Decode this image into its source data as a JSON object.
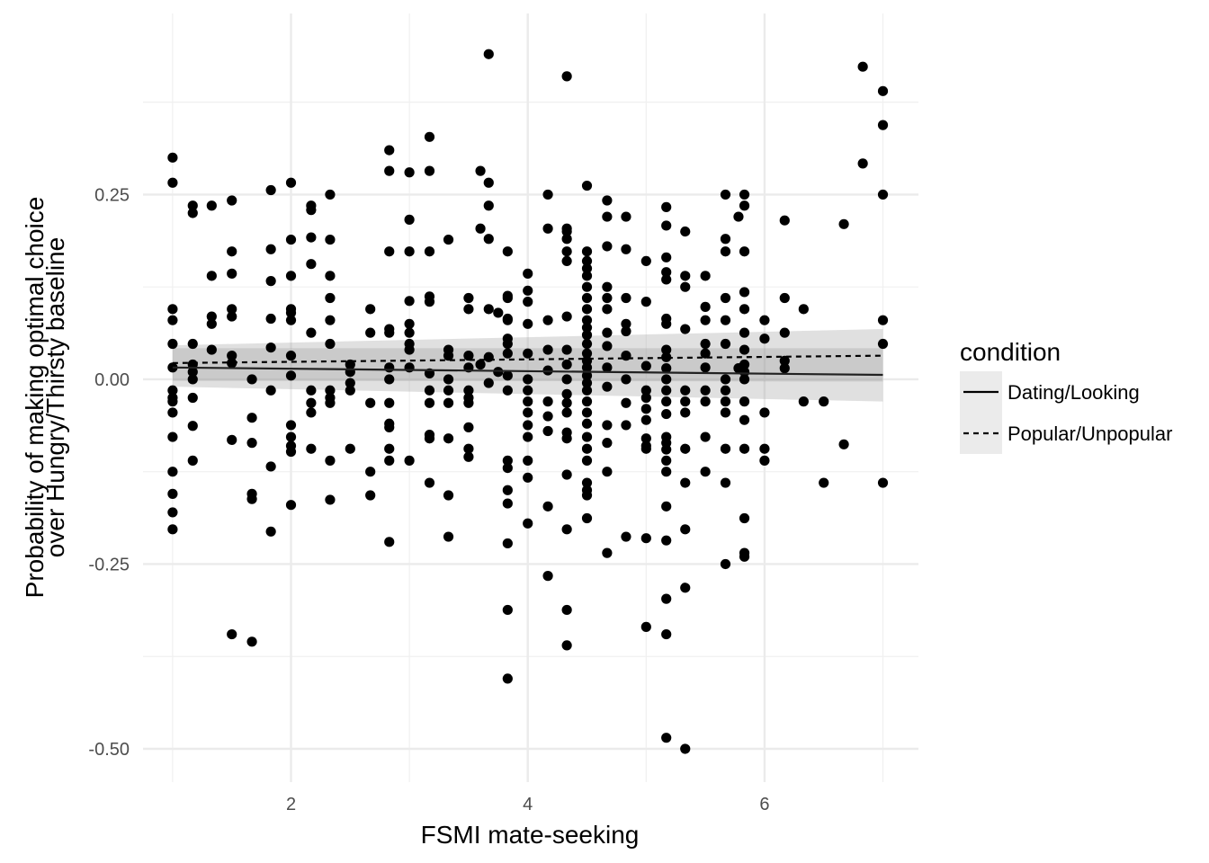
{
  "chart_data": {
    "type": "scatter",
    "xlabel": "FSMI mate-seeking",
    "ylabel_lines": [
      "Probability of making optimal choice",
      "over Hungry/Thirsty baseline"
    ],
    "xlim": [
      0.75,
      7.3
    ],
    "ylim": [
      -0.545,
      0.495
    ],
    "x_ticks": [
      2,
      4,
      6
    ],
    "x_tick_labels": [
      "2",
      "4",
      "6"
    ],
    "y_ticks": [
      -0.5,
      -0.25,
      0.0,
      0.25
    ],
    "y_tick_labels": [
      "-0.50",
      "-0.25",
      "0.00",
      "0.25"
    ],
    "grid": true,
    "legend": {
      "title": "condition",
      "position": "right",
      "entries": [
        {
          "label": "Dating/Looking",
          "linetype": "solid"
        },
        {
          "label": "Popular/Unpopular",
          "linetype": "dashed"
        }
      ]
    },
    "series": [
      {
        "name": "Dating/Looking",
        "type": "line",
        "linetype": "solid",
        "x": [
          1.0,
          7.0
        ],
        "y": [
          0.016,
          0.006
        ],
        "ci_lower": [
          -0.01,
          -0.03
        ],
        "ci_upper": [
          0.042,
          0.042
        ]
      },
      {
        "name": "Popular/Unpopular",
        "type": "line",
        "linetype": "dashed",
        "x": [
          1.0,
          7.0
        ],
        "y": [
          0.022,
          0.032
        ],
        "ci_lower": [
          -0.002,
          -0.003
        ],
        "ci_upper": [
          0.046,
          0.068
        ]
      }
    ],
    "points": [
      [
        1.0,
        0.3
      ],
      [
        1.0,
        0.266
      ],
      [
        1.0,
        0.095
      ],
      [
        1.0,
        0.08
      ],
      [
        1.0,
        0.048
      ],
      [
        1.0,
        0.016
      ],
      [
        1.0,
        -0.015
      ],
      [
        1.0,
        -0.025
      ],
      [
        1.0,
        -0.03
      ],
      [
        1.0,
        -0.045
      ],
      [
        1.0,
        -0.078
      ],
      [
        1.0,
        -0.125
      ],
      [
        1.0,
        -0.155
      ],
      [
        1.0,
        -0.18
      ],
      [
        1.0,
        -0.203
      ],
      [
        1.17,
        0.235
      ],
      [
        1.17,
        0.225
      ],
      [
        1.17,
        0.048
      ],
      [
        1.17,
        0.02
      ],
      [
        1.17,
        0.01
      ],
      [
        1.17,
        0.0
      ],
      [
        1.17,
        -0.025
      ],
      [
        1.17,
        -0.063
      ],
      [
        1.17,
        -0.11
      ],
      [
        1.33,
        0.235
      ],
      [
        1.33,
        0.14
      ],
      [
        1.33,
        0.085
      ],
      [
        1.33,
        0.075
      ],
      [
        1.33,
        0.04
      ],
      [
        1.5,
        0.242
      ],
      [
        1.5,
        0.173
      ],
      [
        1.5,
        0.143
      ],
      [
        1.5,
        0.095
      ],
      [
        1.5,
        0.085
      ],
      [
        1.5,
        0.032
      ],
      [
        1.5,
        0.022
      ],
      [
        1.5,
        -0.082
      ],
      [
        1.5,
        -0.345
      ],
      [
        1.67,
        0.0
      ],
      [
        1.67,
        -0.052
      ],
      [
        1.67,
        -0.086
      ],
      [
        1.67,
        -0.155
      ],
      [
        1.67,
        -0.162
      ],
      [
        1.67,
        -0.355
      ],
      [
        1.83,
        0.256
      ],
      [
        1.83,
        0.176
      ],
      [
        1.83,
        0.133
      ],
      [
        1.83,
        0.082
      ],
      [
        1.83,
        0.043
      ],
      [
        1.83,
        -0.015
      ],
      [
        1.83,
        -0.118
      ],
      [
        1.83,
        -0.206
      ],
      [
        2.0,
        0.266
      ],
      [
        2.0,
        0.189
      ],
      [
        2.0,
        0.14
      ],
      [
        2.0,
        0.095
      ],
      [
        2.0,
        0.09
      ],
      [
        2.0,
        0.08
      ],
      [
        2.0,
        0.032
      ],
      [
        2.0,
        0.005
      ],
      [
        2.0,
        -0.062
      ],
      [
        2.0,
        -0.078
      ],
      [
        2.0,
        -0.09
      ],
      [
        2.0,
        -0.098
      ],
      [
        2.0,
        -0.17
      ],
      [
        2.33,
        0.25
      ],
      [
        2.33,
        0.189
      ],
      [
        2.33,
        0.14
      ],
      [
        2.33,
        0.11
      ],
      [
        2.33,
        0.08
      ],
      [
        2.33,
        0.048
      ],
      [
        2.33,
        -0.015
      ],
      [
        2.33,
        -0.025
      ],
      [
        2.33,
        -0.032
      ],
      [
        2.33,
        -0.11
      ],
      [
        2.33,
        -0.163
      ],
      [
        2.17,
        0.235
      ],
      [
        2.17,
        0.229
      ],
      [
        2.17,
        0.192
      ],
      [
        2.17,
        0.156
      ],
      [
        2.17,
        0.063
      ],
      [
        2.17,
        -0.015
      ],
      [
        2.17,
        -0.032
      ],
      [
        2.17,
        -0.045
      ],
      [
        2.17,
        -0.094
      ],
      [
        2.5,
        0.02
      ],
      [
        2.5,
        0.01
      ],
      [
        2.5,
        -0.005
      ],
      [
        2.5,
        -0.015
      ],
      [
        2.5,
        -0.094
      ],
      [
        2.67,
        0.095
      ],
      [
        2.67,
        0.063
      ],
      [
        2.67,
        -0.032
      ],
      [
        2.67,
        -0.125
      ],
      [
        2.67,
        -0.157
      ],
      [
        2.83,
        0.31
      ],
      [
        2.83,
        0.282
      ],
      [
        2.83,
        0.173
      ],
      [
        2.83,
        0.068
      ],
      [
        2.83,
        0.063
      ],
      [
        2.83,
        0.016
      ],
      [
        2.83,
        0.0
      ],
      [
        2.83,
        -0.032
      ],
      [
        2.83,
        -0.06
      ],
      [
        2.83,
        -0.065
      ],
      [
        2.83,
        -0.094
      ],
      [
        2.83,
        -0.11
      ],
      [
        2.83,
        -0.22
      ],
      [
        3.0,
        0.28
      ],
      [
        3.0,
        0.216
      ],
      [
        3.0,
        0.173
      ],
      [
        3.0,
        0.106
      ],
      [
        3.0,
        0.075
      ],
      [
        3.0,
        0.063
      ],
      [
        3.0,
        0.048
      ],
      [
        3.0,
        0.04
      ],
      [
        3.0,
        0.016
      ],
      [
        3.0,
        -0.11
      ],
      [
        3.17,
        0.328
      ],
      [
        3.17,
        0.282
      ],
      [
        3.17,
        0.173
      ],
      [
        3.17,
        0.112
      ],
      [
        3.17,
        0.105
      ],
      [
        3.17,
        0.008
      ],
      [
        3.17,
        -0.015
      ],
      [
        3.17,
        -0.032
      ],
      [
        3.17,
        -0.075
      ],
      [
        3.17,
        -0.08
      ],
      [
        3.17,
        -0.14
      ],
      [
        3.33,
        0.189
      ],
      [
        3.33,
        0.04
      ],
      [
        3.33,
        0.032
      ],
      [
        3.33,
        0.0
      ],
      [
        3.33,
        -0.015
      ],
      [
        3.33,
        -0.032
      ],
      [
        3.33,
        -0.08
      ],
      [
        3.33,
        -0.157
      ],
      [
        3.33,
        -0.213
      ],
      [
        3.5,
        0.11
      ],
      [
        3.5,
        0.095
      ],
      [
        3.5,
        0.032
      ],
      [
        3.5,
        0.016
      ],
      [
        3.5,
        -0.015
      ],
      [
        3.5,
        -0.025
      ],
      [
        3.5,
        -0.032
      ],
      [
        3.5,
        -0.065
      ],
      [
        3.5,
        -0.094
      ],
      [
        3.5,
        -0.105
      ],
      [
        3.6,
        0.282
      ],
      [
        3.6,
        0.204
      ],
      [
        3.6,
        0.02
      ],
      [
        3.67,
        0.44
      ],
      [
        3.67,
        0.266
      ],
      [
        3.67,
        0.235
      ],
      [
        3.67,
        0.19
      ],
      [
        3.67,
        0.095
      ],
      [
        3.67,
        0.03
      ],
      [
        3.67,
        -0.005
      ],
      [
        3.75,
        0.09
      ],
      [
        3.75,
        0.01
      ],
      [
        3.83,
        0.173
      ],
      [
        3.83,
        0.113
      ],
      [
        3.83,
        0.11
      ],
      [
        3.83,
        0.082
      ],
      [
        3.83,
        0.08
      ],
      [
        3.83,
        0.055
      ],
      [
        3.83,
        0.048
      ],
      [
        3.83,
        0.035
      ],
      [
        3.83,
        0.005
      ],
      [
        3.83,
        -0.015
      ],
      [
        3.83,
        -0.11
      ],
      [
        3.83,
        -0.12
      ],
      [
        3.83,
        -0.15
      ],
      [
        3.83,
        -0.168
      ],
      [
        3.83,
        -0.222
      ],
      [
        3.83,
        -0.312
      ],
      [
        3.83,
        -0.405
      ],
      [
        4.0,
        0.143
      ],
      [
        4.0,
        0.12
      ],
      [
        4.0,
        0.105
      ],
      [
        4.0,
        0.075
      ],
      [
        4.0,
        0.035
      ],
      [
        4.0,
        0.0
      ],
      [
        4.0,
        -0.015
      ],
      [
        4.0,
        -0.03
      ],
      [
        4.0,
        -0.045
      ],
      [
        4.0,
        -0.062
      ],
      [
        4.0,
        -0.078
      ],
      [
        4.0,
        -0.11
      ],
      [
        4.0,
        -0.133
      ],
      [
        4.0,
        -0.195
      ],
      [
        4.33,
        0.41
      ],
      [
        4.33,
        0.204
      ],
      [
        4.33,
        0.2
      ],
      [
        4.33,
        0.19
      ],
      [
        4.33,
        0.173
      ],
      [
        4.33,
        0.16
      ],
      [
        4.33,
        0.085
      ],
      [
        4.33,
        0.04
      ],
      [
        4.33,
        0.02
      ],
      [
        4.33,
        0.0
      ],
      [
        4.33,
        -0.02
      ],
      [
        4.33,
        -0.032
      ],
      [
        4.33,
        -0.045
      ],
      [
        4.33,
        -0.072
      ],
      [
        4.33,
        -0.08
      ],
      [
        4.33,
        -0.129
      ],
      [
        4.33,
        -0.203
      ],
      [
        4.33,
        -0.312
      ],
      [
        4.33,
        -0.36
      ],
      [
        4.17,
        0.25
      ],
      [
        4.17,
        0.204
      ],
      [
        4.17,
        0.08
      ],
      [
        4.17,
        0.04
      ],
      [
        4.17,
        0.012
      ],
      [
        4.17,
        -0.03
      ],
      [
        4.17,
        -0.05
      ],
      [
        4.17,
        -0.07
      ],
      [
        4.17,
        -0.172
      ],
      [
        4.17,
        -0.266
      ],
      [
        4.5,
        0.262
      ],
      [
        4.5,
        0.173
      ],
      [
        4.5,
        0.16
      ],
      [
        4.5,
        0.15
      ],
      [
        4.5,
        0.14
      ],
      [
        4.5,
        0.125
      ],
      [
        4.5,
        0.11
      ],
      [
        4.5,
        0.095
      ],
      [
        4.5,
        0.08
      ],
      [
        4.5,
        0.07
      ],
      [
        4.5,
        0.06
      ],
      [
        4.5,
        0.048
      ],
      [
        4.5,
        0.035
      ],
      [
        4.5,
        0.025
      ],
      [
        4.5,
        0.016
      ],
      [
        4.5,
        0.005
      ],
      [
        4.5,
        -0.005
      ],
      [
        4.5,
        -0.015
      ],
      [
        4.5,
        -0.03
      ],
      [
        4.5,
        -0.045
      ],
      [
        4.5,
        -0.06
      ],
      [
        4.5,
        -0.078
      ],
      [
        4.5,
        -0.094
      ],
      [
        4.5,
        -0.11
      ],
      [
        4.5,
        -0.14
      ],
      [
        4.5,
        -0.15
      ],
      [
        4.5,
        -0.157
      ],
      [
        4.5,
        -0.188
      ],
      [
        4.67,
        0.242
      ],
      [
        4.67,
        0.22
      ],
      [
        4.67,
        0.18
      ],
      [
        4.67,
        0.125
      ],
      [
        4.67,
        0.11
      ],
      [
        4.67,
        0.095
      ],
      [
        4.67,
        0.063
      ],
      [
        4.67,
        0.045
      ],
      [
        4.67,
        0.016
      ],
      [
        4.67,
        -0.01
      ],
      [
        4.67,
        -0.062
      ],
      [
        4.67,
        -0.086
      ],
      [
        4.67,
        -0.125
      ],
      [
        4.67,
        -0.235
      ],
      [
        4.83,
        0.22
      ],
      [
        4.83,
        0.176
      ],
      [
        4.83,
        0.11
      ],
      [
        4.83,
        0.075
      ],
      [
        4.83,
        0.065
      ],
      [
        4.83,
        0.032
      ],
      [
        4.83,
        0.0
      ],
      [
        4.83,
        -0.032
      ],
      [
        4.83,
        -0.062
      ],
      [
        4.83,
        -0.213
      ],
      [
        5.0,
        0.16
      ],
      [
        5.0,
        0.105
      ],
      [
        5.0,
        0.018
      ],
      [
        5.0,
        -0.015
      ],
      [
        5.0,
        -0.025
      ],
      [
        5.0,
        -0.04
      ],
      [
        5.0,
        -0.055
      ],
      [
        5.0,
        -0.08
      ],
      [
        5.0,
        -0.09
      ],
      [
        5.0,
        -0.094
      ],
      [
        5.0,
        -0.215
      ],
      [
        5.0,
        -0.335
      ],
      [
        5.17,
        0.233
      ],
      [
        5.17,
        0.208
      ],
      [
        5.17,
        0.165
      ],
      [
        5.17,
        0.145
      ],
      [
        5.17,
        0.135
      ],
      [
        5.17,
        0.082
      ],
      [
        5.17,
        0.075
      ],
      [
        5.17,
        0.04
      ],
      [
        5.17,
        0.03
      ],
      [
        5.17,
        0.015
      ],
      [
        5.17,
        0.0
      ],
      [
        5.17,
        -0.015
      ],
      [
        5.17,
        -0.03
      ],
      [
        5.17,
        -0.047
      ],
      [
        5.17,
        -0.078
      ],
      [
        5.17,
        -0.086
      ],
      [
        5.17,
        -0.095
      ],
      [
        5.17,
        -0.11
      ],
      [
        5.17,
        -0.125
      ],
      [
        5.17,
        -0.172
      ],
      [
        5.17,
        -0.218
      ],
      [
        5.17,
        -0.297
      ],
      [
        5.17,
        -0.345
      ],
      [
        5.17,
        -0.485
      ],
      [
        5.33,
        0.2
      ],
      [
        5.33,
        0.14
      ],
      [
        5.33,
        0.125
      ],
      [
        5.33,
        0.068
      ],
      [
        5.33,
        -0.015
      ],
      [
        5.33,
        -0.03
      ],
      [
        5.33,
        -0.045
      ],
      [
        5.33,
        -0.094
      ],
      [
        5.33,
        -0.14
      ],
      [
        5.33,
        -0.203
      ],
      [
        5.33,
        -0.282
      ],
      [
        5.33,
        -0.5
      ],
      [
        5.5,
        0.14
      ],
      [
        5.5,
        0.098
      ],
      [
        5.5,
        0.08
      ],
      [
        5.5,
        0.048
      ],
      [
        5.5,
        0.035
      ],
      [
        5.5,
        0.016
      ],
      [
        5.5,
        -0.015
      ],
      [
        5.5,
        -0.03
      ],
      [
        5.5,
        -0.078
      ],
      [
        5.5,
        -0.125
      ],
      [
        5.67,
        0.25
      ],
      [
        5.67,
        0.19
      ],
      [
        5.67,
        0.173
      ],
      [
        5.67,
        0.11
      ],
      [
        5.67,
        0.08
      ],
      [
        5.67,
        0.048
      ],
      [
        5.67,
        0.0
      ],
      [
        5.67,
        -0.015
      ],
      [
        5.67,
        -0.03
      ],
      [
        5.67,
        -0.045
      ],
      [
        5.67,
        -0.094
      ],
      [
        5.67,
        -0.14
      ],
      [
        5.67,
        -0.25
      ],
      [
        5.83,
        0.25
      ],
      [
        5.83,
        0.235
      ],
      [
        5.83,
        0.173
      ],
      [
        5.83,
        0.118
      ],
      [
        5.83,
        0.095
      ],
      [
        5.83,
        0.063
      ],
      [
        5.83,
        0.04
      ],
      [
        5.83,
        0.02
      ],
      [
        5.83,
        0.01
      ],
      [
        5.83,
        0.0
      ],
      [
        5.83,
        -0.03
      ],
      [
        5.83,
        -0.055
      ],
      [
        5.83,
        -0.094
      ],
      [
        5.83,
        -0.188
      ],
      [
        5.83,
        -0.235
      ],
      [
        5.83,
        -0.24
      ],
      [
        5.78,
        0.22
      ],
      [
        5.78,
        0.015
      ],
      [
        6.0,
        0.08
      ],
      [
        6.0,
        0.055
      ],
      [
        6.0,
        -0.045
      ],
      [
        6.0,
        -0.094
      ],
      [
        6.0,
        -0.11
      ],
      [
        6.17,
        0.215
      ],
      [
        6.17,
        0.11
      ],
      [
        6.17,
        0.063
      ],
      [
        6.17,
        0.025
      ],
      [
        6.17,
        0.015
      ],
      [
        6.33,
        0.095
      ],
      [
        6.33,
        -0.03
      ],
      [
        6.5,
        -0.03
      ],
      [
        6.5,
        -0.14
      ],
      [
        6.67,
        0.21
      ],
      [
        6.67,
        -0.088
      ],
      [
        6.83,
        0.423
      ],
      [
        6.83,
        0.292
      ],
      [
        7.0,
        0.39
      ],
      [
        7.0,
        0.344
      ],
      [
        7.0,
        0.25
      ],
      [
        7.0,
        0.08
      ],
      [
        7.0,
        0.048
      ],
      [
        7.0,
        -0.14
      ]
    ]
  }
}
